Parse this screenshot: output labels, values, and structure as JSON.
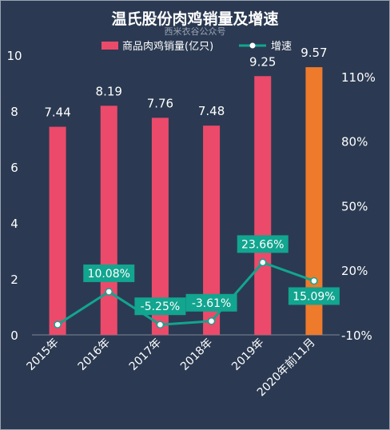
{
  "title": "温氏股份肉鸡销量及增速",
  "subtitle": "西米衣谷公众号",
  "colors": {
    "background": "#2b3a52",
    "bar": "#ec4a6a",
    "bar_highlight": "#ee7a2c",
    "line": "#12a58f",
    "text": "#ffffff"
  },
  "chart_data": {
    "type": "bar",
    "categories": [
      "2015年",
      "2016年",
      "2017年",
      "2018年",
      "2019年",
      "2020年前11月"
    ],
    "series": [
      {
        "name": "商品肉鸡销量(亿只)",
        "type": "bar",
        "axis": "left",
        "values": [
          7.44,
          8.19,
          7.76,
          7.48,
          9.25,
          9.57
        ]
      },
      {
        "name": "增速",
        "type": "line",
        "axis": "right",
        "values": [
          -5.2,
          10.08,
          -5.25,
          -3.61,
          23.66,
          15.09
        ],
        "labels": [
          "",
          "10.08%",
          "-5.25%",
          "-3.61%",
          "23.66%",
          "15.09%"
        ]
      }
    ],
    "highlight_index": 5,
    "y_left": {
      "ticks": [
        "0",
        "2",
        "4",
        "6",
        "8",
        "10"
      ],
      "min": 0,
      "max": 10
    },
    "y_right": {
      "ticks": [
        "-10%",
        "20%",
        "50%",
        "80%",
        "110%"
      ],
      "min": -10,
      "max": 120
    },
    "legend_position": "top"
  }
}
